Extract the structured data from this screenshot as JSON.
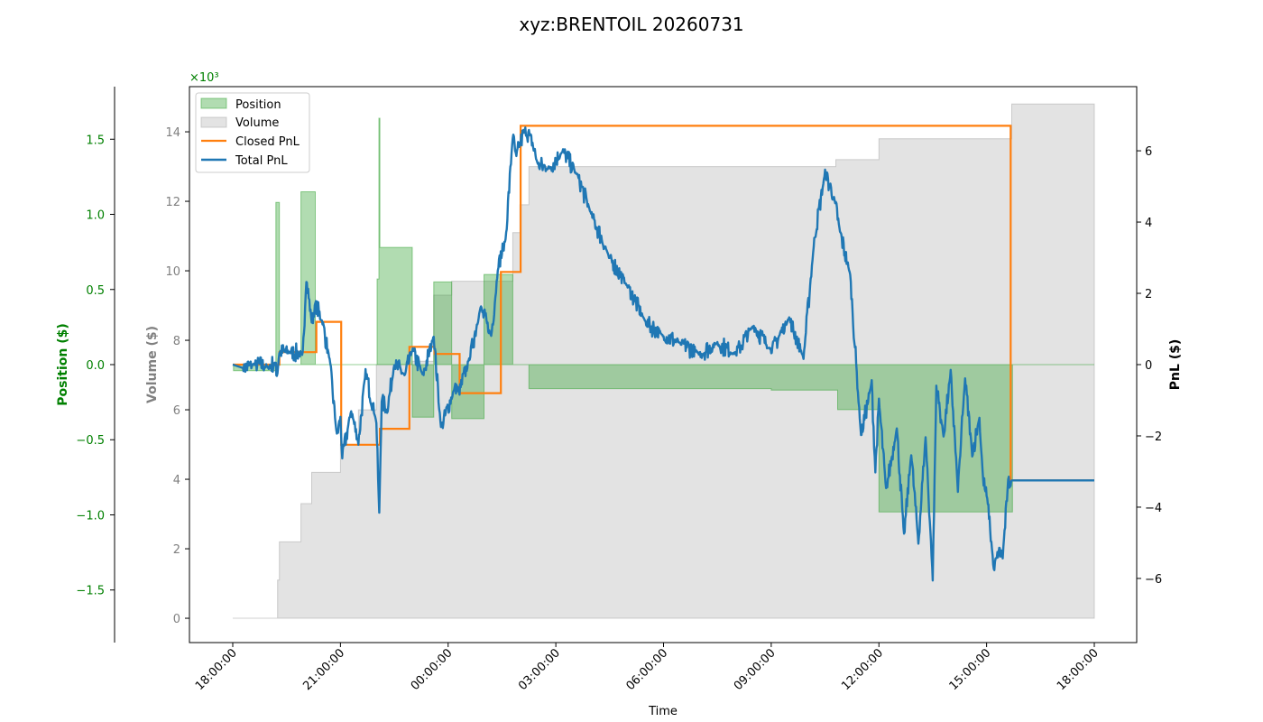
{
  "chart_data": {
    "type": "line",
    "title": "xyz:BRENTOIL 20260731",
    "xlabel": "Time",
    "x_ticks": [
      "18:00:00",
      "21:00:00",
      "00:00:00",
      "03:00:00",
      "06:00:00",
      "09:00:00",
      "12:00:00",
      "15:00:00",
      "18:00:00"
    ],
    "x_range_hours": [
      0,
      24
    ],
    "axes": {
      "position": {
        "label": "Position ($)",
        "color": "#008000",
        "range": [
          -1.85,
          1.85
        ],
        "ticks": [
          "1.5",
          "1.0",
          "0.5",
          "0.0",
          "−0.5",
          "−1.0",
          "−1.5"
        ],
        "tick_values": [
          1.5,
          1.0,
          0.5,
          0.0,
          -0.5,
          -1.0,
          -1.5
        ]
      },
      "volume": {
        "label": "Volume ($)",
        "color": "#808080",
        "range": [
          -700,
          15300
        ],
        "scale_label": "×10³",
        "scale_color": "#008000",
        "ticks": [
          "14",
          "12",
          "10",
          "8",
          "6",
          "4",
          "2",
          "0"
        ],
        "tick_values": [
          14000,
          12000,
          10000,
          8000,
          6000,
          4000,
          2000,
          0
        ]
      },
      "pnl": {
        "label": "PnL ($)",
        "color": "#000000",
        "range": [
          -7.8,
          7.8
        ],
        "ticks": [
          "6",
          "4",
          "2",
          "0",
          "−2",
          "−4",
          "−6"
        ],
        "tick_values": [
          6,
          4,
          2,
          0,
          -2,
          -4,
          -6
        ]
      }
    },
    "legend": {
      "placement": "upper-left",
      "entries": [
        {
          "name": "Position",
          "kind": "patch",
          "color": "#2ca02c"
        },
        {
          "name": "Volume",
          "kind": "patch",
          "color": "#b0b0b0"
        },
        {
          "name": "Closed PnL",
          "kind": "line",
          "color": "#ff7f0e"
        },
        {
          "name": "Total PnL",
          "kind": "line",
          "color": "#1f77b4"
        }
      ]
    },
    "series": [
      {
        "name": "Position",
        "axis": "position",
        "style": "area-step",
        "x": [
          0,
          0.02,
          1.18,
          1.2,
          1.25,
          1.3,
          1.9,
          2.2,
          2.3,
          2.5,
          2.6,
          3.0,
          4.0,
          4.02,
          4.07,
          4.1,
          4.8,
          5.0,
          5.1,
          5.6,
          5.9,
          6.1,
          6.6,
          7.0,
          7.1,
          7.8,
          8.0,
          8.25,
          15.0,
          16.8,
          16.85,
          18.0,
          21.7,
          21.72,
          24.0
        ],
        "values": [
          0.0,
          -0.04,
          -0.04,
          1.08,
          1.08,
          0.0,
          1.15,
          1.15,
          0.0,
          0.0,
          0.0,
          0.0,
          0.0,
          0.57,
          1.64,
          0.78,
          0.78,
          -0.35,
          -0.35,
          0.55,
          0.55,
          -0.36,
          -0.36,
          0.6,
          0.6,
          0.0,
          0.0,
          -0.16,
          -0.17,
          -0.17,
          -0.3,
          -0.98,
          -0.98,
          0.0,
          0.0
        ]
      },
      {
        "name": "Volume",
        "axis": "volume",
        "style": "area-step",
        "x": [
          0,
          1.18,
          1.25,
          1.3,
          1.9,
          2.2,
          2.5,
          3.0,
          3.5,
          4.0,
          4.8,
          5.0,
          5.6,
          6.1,
          7.0,
          7.8,
          8.0,
          8.25,
          15.0,
          16.8,
          18.0,
          21.7,
          24.0
        ],
        "values": [
          0,
          0,
          1100,
          2200,
          3300,
          4200,
          4200,
          5000,
          6000,
          7300,
          7300,
          7400,
          9300,
          9700,
          9700,
          11100,
          11900,
          13000,
          13000,
          13200,
          13800,
          14800,
          14800
        ]
      },
      {
        "name": "Closed PnL",
        "axis": "pnl",
        "style": "step",
        "x": [
          0,
          1.2,
          1.3,
          2.3,
          2.33,
          3.0,
          3.02,
          4.05,
          4.1,
          4.9,
          4.92,
          5.6,
          5.62,
          6.3,
          6.32,
          7.45,
          7.47,
          8.0,
          8.02,
          16.8,
          21.65,
          21.67,
          24.0
        ],
        "values": [
          0.0,
          0.0,
          0.35,
          0.35,
          1.2,
          1.2,
          -2.25,
          -2.25,
          -1.8,
          -1.8,
          0.5,
          0.5,
          0.3,
          0.3,
          -0.8,
          -0.8,
          2.6,
          2.6,
          6.7,
          6.7,
          6.7,
          -3.25,
          -3.25
        ]
      },
      {
        "name": "Total PnL",
        "axis": "pnl",
        "style": "line",
        "x": [
          0,
          0.3,
          0.6,
          1.0,
          1.2,
          1.23,
          1.3,
          1.6,
          1.95,
          2.05,
          2.2,
          2.3,
          2.5,
          2.7,
          2.9,
          3.0,
          3.05,
          3.3,
          3.5,
          3.7,
          4.0,
          4.08,
          4.15,
          4.3,
          4.5,
          4.8,
          5.0,
          5.3,
          5.6,
          5.8,
          6.2,
          6.3,
          6.6,
          6.9,
          7.2,
          7.4,
          7.6,
          7.8,
          7.9,
          8.0,
          8.15,
          8.3,
          8.5,
          8.8,
          9.2,
          9.6,
          10.0,
          10.5,
          11.0,
          11.5,
          12.0,
          12.5,
          13.0,
          13.5,
          14.0,
          14.5,
          15.0,
          15.5,
          15.9,
          16.2,
          16.5,
          16.8,
          16.9,
          17.2,
          17.5,
          17.8,
          17.9,
          18.0,
          18.2,
          18.5,
          18.7,
          18.9,
          19.1,
          19.3,
          19.5,
          19.6,
          19.8,
          20.0,
          20.2,
          20.4,
          20.6,
          20.8,
          20.9,
          21.05,
          21.2,
          21.35,
          21.45,
          21.6,
          21.7,
          24.0
        ],
        "values": [
          0.0,
          -0.1,
          0.0,
          -0.05,
          0.05,
          -0.3,
          0.35,
          0.35,
          0.3,
          2.4,
          1.2,
          1.7,
          1.2,
          0.1,
          -2.0,
          -1.5,
          -2.6,
          -1.3,
          -2.2,
          -0.2,
          -1.6,
          -4.2,
          -1.0,
          -1.3,
          0.0,
          -0.3,
          0.4,
          -0.3,
          0.8,
          -1.8,
          -0.6,
          -0.8,
          0.2,
          1.6,
          0.8,
          2.8,
          3.5,
          6.4,
          5.8,
          6.2,
          6.6,
          6.4,
          5.6,
          5.5,
          6.0,
          5.3,
          4.2,
          3.0,
          2.2,
          1.2,
          0.8,
          0.6,
          0.3,
          0.6,
          0.3,
          1.1,
          0.4,
          1.3,
          0.2,
          3.5,
          5.4,
          4.5,
          3.8,
          2.5,
          -2.0,
          -0.5,
          -3.0,
          -1.0,
          -3.5,
          -1.8,
          -4.8,
          -2.5,
          -5.0,
          -2.0,
          -6.0,
          -0.6,
          -2.0,
          -0.2,
          -3.5,
          -0.4,
          -2.5,
          -1.5,
          -3.2,
          -4.0,
          -5.8,
          -5.2,
          -5.4,
          -3.3,
          -3.25,
          -3.25
        ]
      }
    ]
  }
}
